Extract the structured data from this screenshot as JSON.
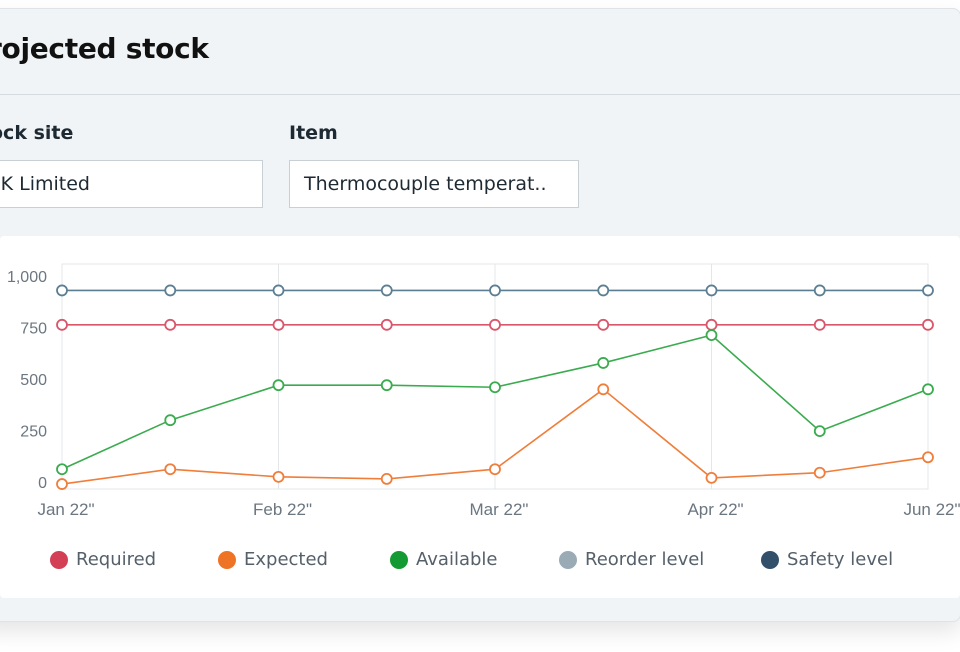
{
  "header": {
    "title": "rojected stock"
  },
  "filters": {
    "stock_site": {
      "label": "ock site",
      "value": "JK Limited"
    },
    "item": {
      "label": "Item",
      "value": "Thermocouple temperat.."
    }
  },
  "colors": {
    "required": "#d9566b",
    "expected": "#f07e3a",
    "available": "#3aab4e",
    "reorder": "#9aabb6",
    "safety": "#5c7e93"
  },
  "legend": [
    {
      "key": "required",
      "label": "Required",
      "color": "#d33f55"
    },
    {
      "key": "expected",
      "label": "Expected",
      "color": "#ee7325"
    },
    {
      "key": "available",
      "label": "Available",
      "color": "#139a32"
    },
    {
      "key": "reorder",
      "label": "Reorder level",
      "color": "#9aabb6"
    },
    {
      "key": "safety",
      "label": "Safety level",
      "color": "#33506a"
    }
  ],
  "chart_data": {
    "type": "line",
    "title": "",
    "xlabel": "",
    "ylabel": "",
    "ylim": [
      0,
      1000
    ],
    "y_ticks": [
      0,
      250,
      500,
      750,
      1000
    ],
    "y_tick_labels": [
      "0",
      "250",
      "500",
      "750",
      "1,000"
    ],
    "x_tick_labels": [
      "Jan 22\"",
      "Feb 22\"",
      "Mar 22\"",
      "Apr 22\"",
      "Jun 22\""
    ],
    "x_tick_positions": [
      0,
      2,
      4,
      6,
      8
    ],
    "grid": true,
    "legend_position": "bottom",
    "points_count": 9,
    "series": [
      {
        "key": "safety",
        "name": "Safety level",
        "values": [
          930,
          930,
          930,
          930,
          930,
          930,
          930,
          930,
          930
        ]
      },
      {
        "key": "required",
        "name": "Required",
        "values": [
          763,
          763,
          763,
          763,
          763,
          763,
          763,
          763,
          763
        ]
      },
      {
        "key": "available",
        "name": "Available",
        "values": [
          62,
          300,
          470,
          470,
          460,
          578,
          713,
          247,
          450
        ]
      },
      {
        "key": "expected",
        "name": "Expected",
        "values": [
          -10,
          62,
          25,
          15,
          62,
          450,
          20,
          45,
          120
        ]
      }
    ]
  }
}
